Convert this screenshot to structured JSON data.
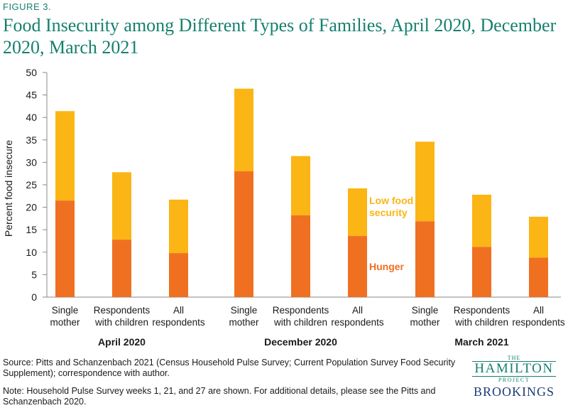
{
  "figure_label": "FIGURE 3.",
  "title": "Food Insecurity among Different Types of Families, April 2020, December 2020, March 2021",
  "source": "Source: Pitts and Schanzenbach 2021 (Census Household Pulse Survey; Current Population Survey Food Security Supplement); correspondence with author.",
  "note": "Note: Household Pulse Survey weeks 1, 21, and 27 are shown. For additional details, please see the Pitts and Schanzenbach 2020.",
  "logo": {
    "the": "THE",
    "hamilton": "HAMILTON",
    "project": "PROJECT",
    "brookings": "BROOKINGS"
  },
  "colors": {
    "hunger": "#f07022",
    "low_food_security": "#fbb515",
    "title": "#16806f",
    "axis": "#888888"
  },
  "chart_data": {
    "type": "bar",
    "stacked": true,
    "ylabel": "Percent food insecure",
    "ylim": [
      0,
      50
    ],
    "yticks": [
      0,
      5,
      10,
      15,
      20,
      25,
      30,
      35,
      40,
      45,
      50
    ],
    "grid": false,
    "groups": [
      {
        "label": "April 2020",
        "categories": [
          "Single mother",
          "Respondents with children",
          "All respondents"
        ]
      },
      {
        "label": "December 2020",
        "categories": [
          "Single mother",
          "Respondents with children",
          "All respondents"
        ]
      },
      {
        "label": "March 2021",
        "categories": [
          "Single mother",
          "Respondents with children",
          "All respondents"
        ]
      }
    ],
    "category_lines": {
      "Single mother": [
        "Single",
        "mother"
      ],
      "Respondents with children": [
        "Respondents",
        "with children"
      ],
      "All respondents": [
        "All",
        "respondents"
      ]
    },
    "series": [
      {
        "name": "Hunger",
        "values": [
          21.5,
          12.8,
          9.8,
          28.0,
          18.2,
          13.6,
          16.9,
          11.2,
          8.8
        ]
      },
      {
        "name": "Low food security",
        "values": [
          19.9,
          15.0,
          11.9,
          18.4,
          13.2,
          10.6,
          17.7,
          11.6,
          9.1
        ]
      }
    ],
    "legend": {
      "placement": "inline",
      "low_food_security_lines": [
        "Low food",
        "security"
      ],
      "hunger_label": "Hunger"
    }
  }
}
